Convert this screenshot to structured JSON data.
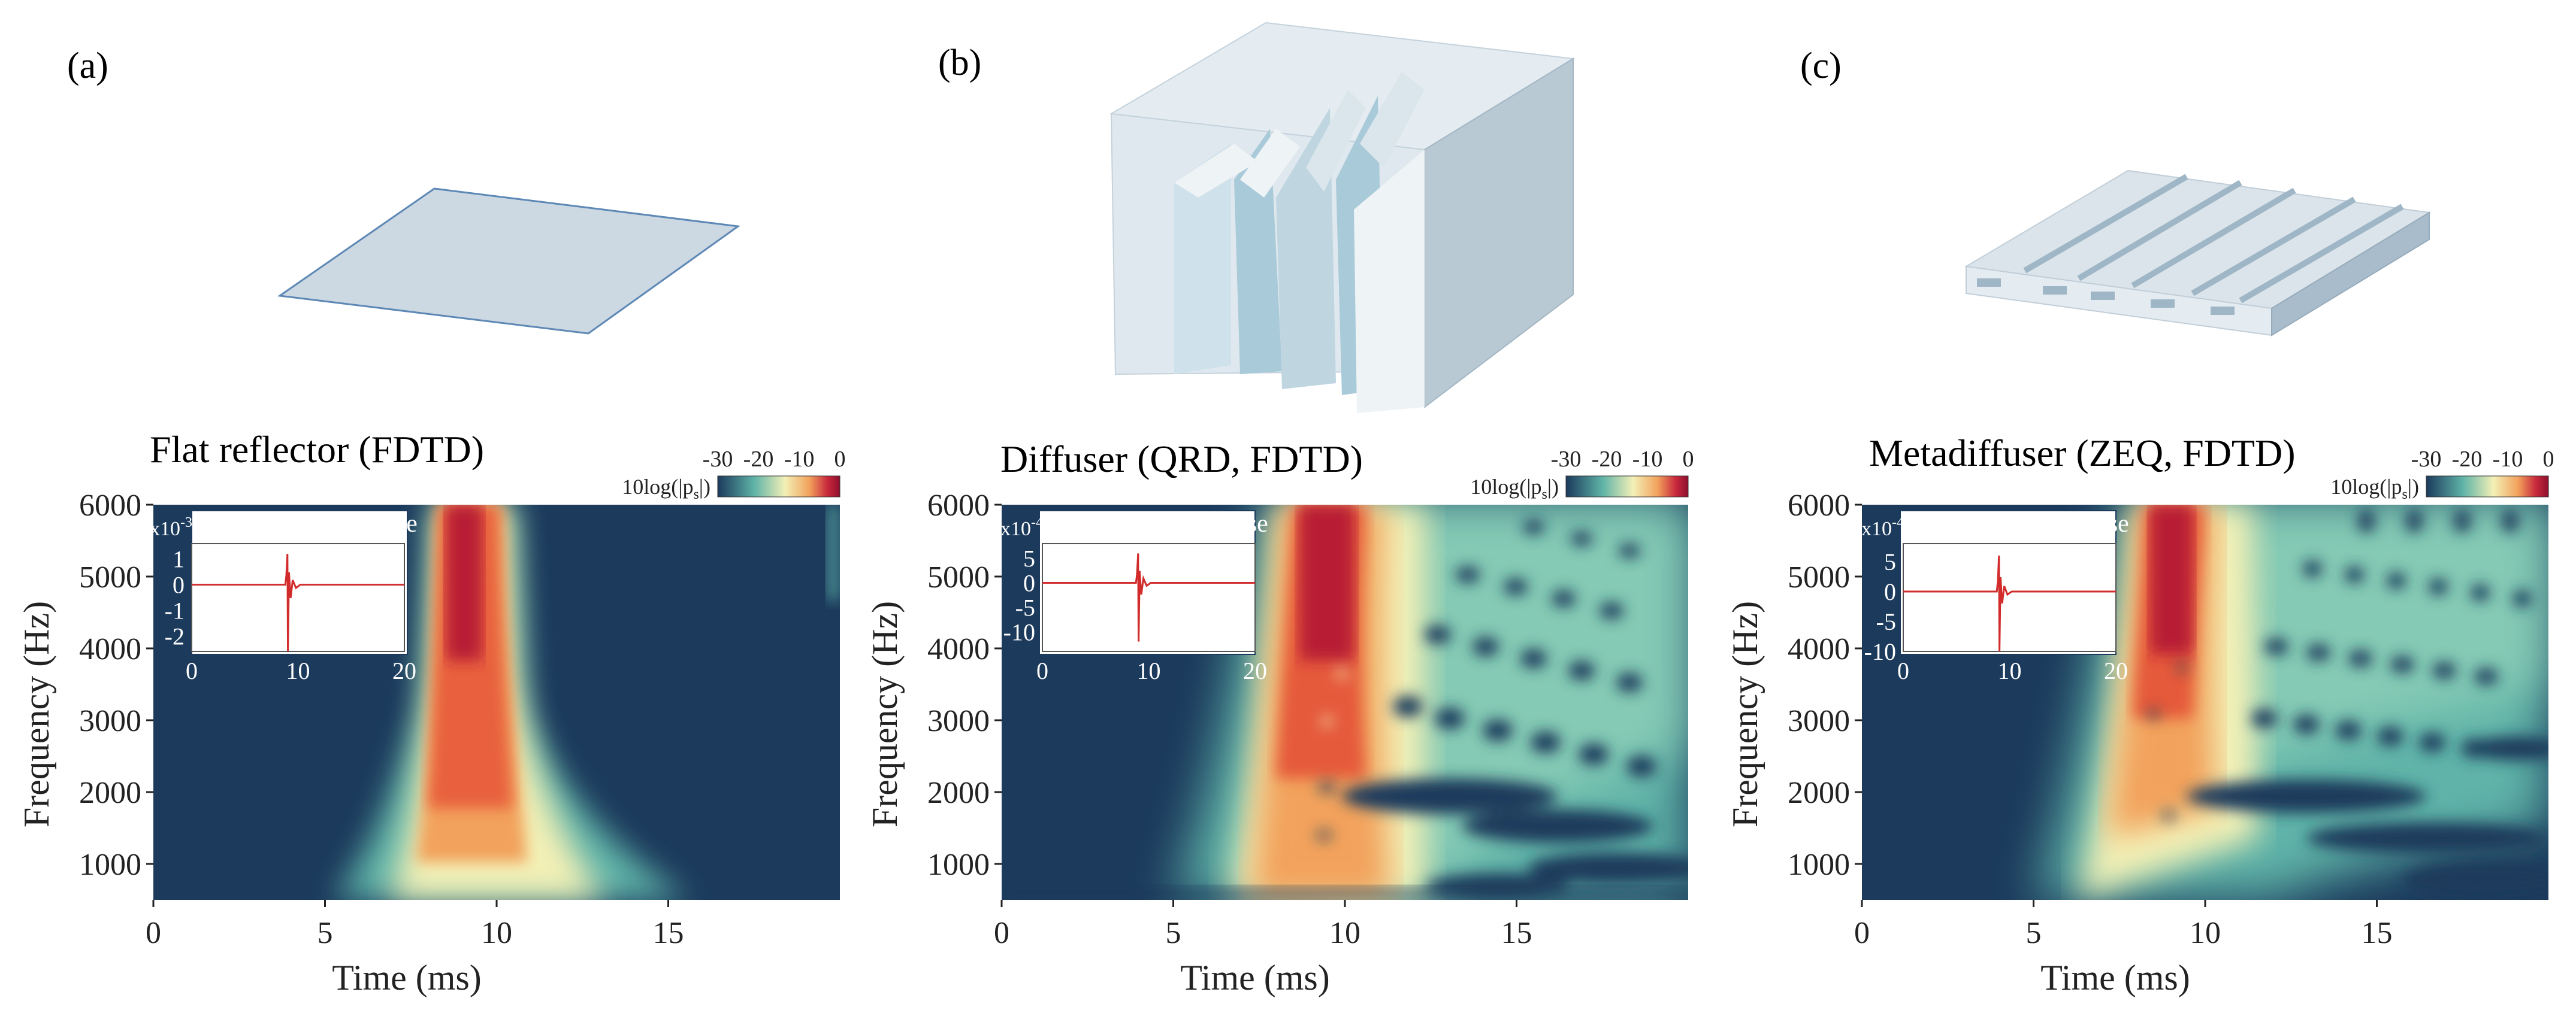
{
  "figure": {
    "colorbar": {
      "ticks": [
        "-30",
        "-20",
        "-10",
        "0"
      ],
      "label": "10log(|p",
      "label_sub": "s",
      "label_end": "|)",
      "stops": [
        "#1b3a5c",
        "#5fb3a8",
        "#f3f0b6",
        "#f2a25c",
        "#c8283c",
        "#8e0f2d"
      ]
    }
  },
  "chart_data": [
    {
      "type": "heatmap",
      "panel_label": "(a)",
      "title": "Flat reflector (FDTD)",
      "xlabel": "Time (ms)",
      "ylabel": "Frequency (Hz)",
      "xlim": [
        0,
        20
      ],
      "ylim": [
        500,
        6000
      ],
      "xticks": [
        "0",
        "5",
        "10",
        "15"
      ],
      "yticks": [
        "1000",
        "2000",
        "3000",
        "4000",
        "5000",
        "6000"
      ],
      "colorbar_range_db": [
        -30,
        0
      ],
      "ridge": {
        "time_ms": 8.7,
        "width_ms": 0.9
      },
      "inset": {
        "type": "line",
        "title": "Impulse Response",
        "scale_label": "x10",
        "scale_exp": "-3",
        "xlim": [
          0,
          20
        ],
        "ylim": [
          -2.6,
          1.6
        ],
        "xticks": [
          "0",
          "10",
          "20"
        ],
        "yticks": [
          "1",
          "0",
          "-1",
          "-2"
        ],
        "ytick_values": [
          1,
          0,
          -1,
          -2
        ],
        "peak_time_ms": 9.0,
        "peak_values": [
          1.2,
          -2.6
        ]
      }
    },
    {
      "type": "heatmap",
      "panel_label": "(b)",
      "title": "Diffuser (QRD, FDTD)",
      "xlabel": "Time (ms)",
      "ylabel": "Frequency (Hz)",
      "xlim": [
        0,
        20
      ],
      "ylim": [
        500,
        6000
      ],
      "xticks": [
        "0",
        "5",
        "10",
        "15"
      ],
      "yticks": [
        "1000",
        "2000",
        "3000",
        "4000",
        "5000",
        "6000"
      ],
      "colorbar_range_db": [
        -30,
        0
      ],
      "ridge": {
        "time_ms": 9.5,
        "width_ms": 2.2
      },
      "inset": {
        "type": "line",
        "title": "Impulse Response",
        "scale_label": "x10",
        "scale_exp": "-4",
        "xlim": [
          0,
          20
        ],
        "ylim": [
          -14,
          8
        ],
        "xticks": [
          "0",
          "10",
          "20"
        ],
        "yticks": [
          "5",
          "0",
          "-5",
          "-10"
        ],
        "ytick_values": [
          5,
          0,
          -5,
          -10
        ],
        "peak_time_ms": 9.0,
        "peak_values": [
          6,
          -12
        ]
      }
    },
    {
      "type": "heatmap",
      "panel_label": "(c)",
      "title": "Metadiffuser (ZEQ, FDTD)",
      "xlabel": "Time (ms)",
      "ylabel": "Frequency (Hz)",
      "xlim": [
        0,
        20
      ],
      "ylim": [
        500,
        6000
      ],
      "xticks": [
        "0",
        "5",
        "10",
        "15"
      ],
      "yticks": [
        "1000",
        "2000",
        "3000",
        "4000",
        "5000",
        "6000"
      ],
      "colorbar_range_db": [
        -30,
        0
      ],
      "ridge": {
        "time_ms": 9.2,
        "width_ms": 1.8
      },
      "inset": {
        "type": "line",
        "title": "Impulse Response",
        "scale_label": "x10",
        "scale_exp": "-4",
        "xlim": [
          0,
          20
        ],
        "ylim": [
          -10,
          8
        ],
        "xticks": [
          "0",
          "10",
          "20"
        ],
        "yticks": [
          "5",
          "0",
          "-5",
          "-10"
        ],
        "ytick_values": [
          5,
          0,
          -5,
          -10
        ],
        "peak_time_ms": 9.0,
        "peak_values": [
          6,
          -10
        ]
      }
    }
  ]
}
